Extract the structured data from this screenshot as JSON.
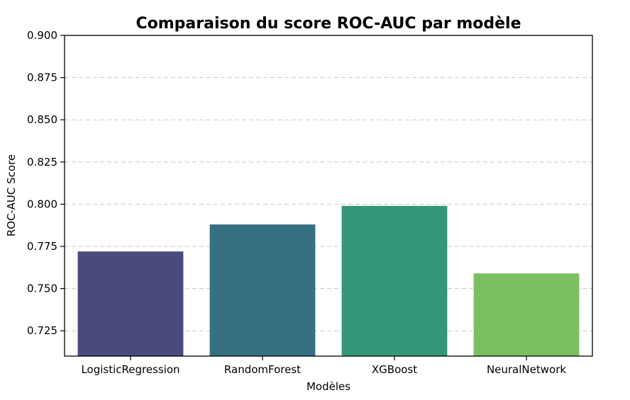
{
  "chart_data": {
    "type": "bar",
    "title": "Comparaison du score ROC-AUC par modèle",
    "xlabel": "Modèles",
    "ylabel": "ROC-AUC Score",
    "categories": [
      "LogisticRegression",
      "RandomForest",
      "XGBoost",
      "NeuralNetwork"
    ],
    "values": [
      0.772,
      0.788,
      0.799,
      0.759
    ],
    "colors": [
      "#4a4b7d",
      "#367182",
      "#34977a",
      "#7bbf62"
    ],
    "ylim": [
      0.71,
      0.9
    ],
    "yticks": [
      0.725,
      0.75,
      0.775,
      0.8,
      0.825,
      0.85,
      0.875,
      0.9
    ],
    "ytick_labels": [
      "0.725",
      "0.750",
      "0.775",
      "0.800",
      "0.825",
      "0.850",
      "0.875",
      "0.900"
    ],
    "grid": "y-dashed",
    "legend": "none"
  }
}
